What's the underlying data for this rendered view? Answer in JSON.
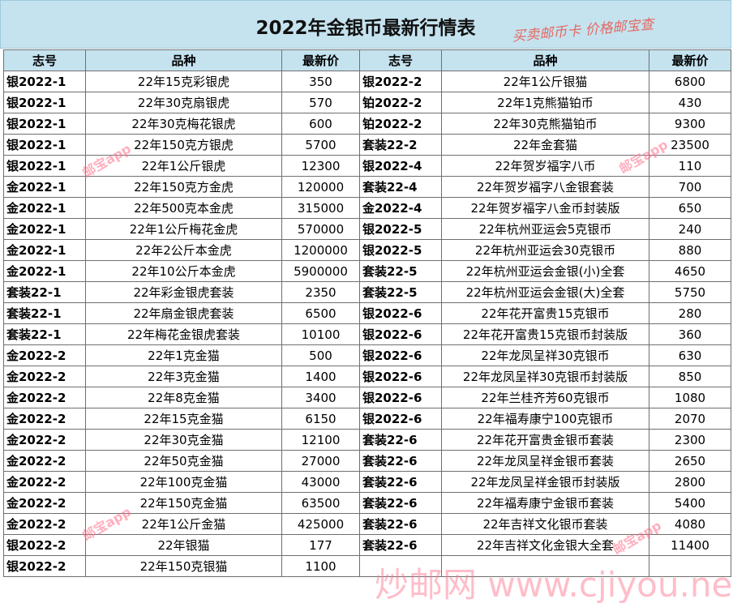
{
  "title": "2022年金银币最新行情表",
  "stamp": "买卖邮币卡 价格邮宝查",
  "headers": [
    "志号",
    "品种",
    "最新价",
    "志号",
    "品种",
    "最新价"
  ],
  "rows": [
    {
      "left": {
        "code": "银2022-1",
        "name": "22年15克彩银虎",
        "price": "350"
      },
      "right": {
        "code": "银2022-2",
        "name": "22年1公斤银猫",
        "price": "6800"
      }
    },
    {
      "left": {
        "code": "银2022-1",
        "name": "22年30克扇银虎",
        "price": "570"
      },
      "right": {
        "code": "铂2022-2",
        "name": "22年1克熊猫铂币",
        "price": "430"
      }
    },
    {
      "left": {
        "code": "银2022-1",
        "name": "22年30克梅花银虎",
        "price": "600"
      },
      "right": {
        "code": "铂2022-2",
        "name": "22年30克熊猫铂币",
        "price": "9300"
      }
    },
    {
      "left": {
        "code": "银2022-1",
        "name": "22年150克方银虎",
        "price": "5700"
      },
      "right": {
        "code": "套装22-2",
        "name": "22年金套猫",
        "price": "23500"
      }
    },
    {
      "left": {
        "code": "银2022-1",
        "name": "22年1公斤银虎",
        "price": "12300"
      },
      "right": {
        "code": "银2022-4",
        "name": "22年贺岁福字八币",
        "price": "110"
      }
    },
    {
      "left": {
        "code": "金2022-1",
        "name": "22年150克方金虎",
        "price": "120000"
      },
      "right": {
        "code": "套装22-4",
        "name": "22年贺岁福字八金银套装",
        "price": "700"
      }
    },
    {
      "left": {
        "code": "金2022-1",
        "name": "22年500克本金虎",
        "price": "315000"
      },
      "right": {
        "code": "金2022-4",
        "name": "22年贺岁福字八金币封装版",
        "price": "650"
      }
    },
    {
      "left": {
        "code": "金2022-1",
        "name": "22年1公斤梅花金虎",
        "price": "570000"
      },
      "right": {
        "code": "银2022-5",
        "name": "22年杭州亚运会5克银币",
        "price": "240"
      }
    },
    {
      "left": {
        "code": "金2022-1",
        "name": "22年2公斤本金虎",
        "price": "1200000"
      },
      "right": {
        "code": "银2022-5",
        "name": "22年杭州亚运会30克银币",
        "price": "880"
      }
    },
    {
      "left": {
        "code": "金2022-1",
        "name": "22年10公斤本金虎",
        "price": "5900000"
      },
      "right": {
        "code": "套装22-5",
        "name": "22年杭州亚运会金银(小)全套",
        "price": "4650"
      }
    },
    {
      "left": {
        "code": "套装22-1",
        "name": "22年彩金银虎套装",
        "price": "2350"
      },
      "right": {
        "code": "套装22-5",
        "name": "22年杭州亚运会金银(大)全套",
        "price": "5750"
      }
    },
    {
      "left": {
        "code": "套装22-1",
        "name": "22年扇金银虎套装",
        "price": "6500"
      },
      "right": {
        "code": "银2022-6",
        "name": "22年花开富贵15克银币",
        "price": "280"
      }
    },
    {
      "left": {
        "code": "套装22-1",
        "name": "22年梅花金银虎套装",
        "price": "10100"
      },
      "right": {
        "code": "银2022-6",
        "name": "22年花开富贵15克银币封装版",
        "price": "360"
      }
    },
    {
      "left": {
        "code": "金2022-2",
        "name": "22年1克金猫",
        "price": "500"
      },
      "right": {
        "code": "银2022-6",
        "name": "22年龙凤呈祥30克银币",
        "price": "630"
      }
    },
    {
      "left": {
        "code": "金2022-2",
        "name": "22年3克金猫",
        "price": "1400"
      },
      "right": {
        "code": "银2022-6",
        "name": "22年龙凤呈祥30克银币封装版",
        "price": "850"
      }
    },
    {
      "left": {
        "code": "金2022-2",
        "name": "22年8克金猫",
        "price": "3400"
      },
      "right": {
        "code": "银2022-6",
        "name": "22年兰桂齐芳60克银币",
        "price": "1080"
      }
    },
    {
      "left": {
        "code": "金2022-2",
        "name": "22年15克金猫",
        "price": "6150"
      },
      "right": {
        "code": "银2022-6",
        "name": "22年福寿康宁100克银币",
        "price": "2070"
      }
    },
    {
      "left": {
        "code": "金2022-2",
        "name": "22年30克金猫",
        "price": "12100"
      },
      "right": {
        "code": "套装22-6",
        "name": "22年花开富贵金银币套装",
        "price": "2300"
      }
    },
    {
      "left": {
        "code": "金2022-2",
        "name": "22年50克金猫",
        "price": "27000"
      },
      "right": {
        "code": "套装22-6",
        "name": "22年龙凤呈祥金银币套装",
        "price": "2650"
      }
    },
    {
      "left": {
        "code": "金2022-2",
        "name": "22年100克金猫",
        "price": "43000"
      },
      "right": {
        "code": "套装22-6",
        "name": "22年龙凤呈祥金银币封装版",
        "price": "2800"
      }
    },
    {
      "left": {
        "code": "金2022-2",
        "name": "22年150克金猫",
        "price": "63500"
      },
      "right": {
        "code": "套装22-6",
        "name": "22年福寿康宁金银币套装",
        "price": "5400"
      }
    },
    {
      "left": {
        "code": "金2022-2",
        "name": "22年1公斤金猫",
        "price": "425000"
      },
      "right": {
        "code": "套装22-6",
        "name": "22年吉祥文化银币套装",
        "price": "4080"
      }
    },
    {
      "left": {
        "code": "银2022-2",
        "name": "22年银猫",
        "price": "177"
      },
      "right": {
        "code": "套装22-6",
        "name": "22年吉祥文化金银大全套",
        "price": "11400"
      }
    },
    {
      "left": {
        "code": "银2022-2",
        "name": "22年150克银猫",
        "price": "1100"
      },
      "right": {
        "code": "",
        "name": "",
        "price": ""
      }
    }
  ],
  "watermarks": {
    "small": "邮宝app",
    "big": "炒邮网 www.cjiyou.net"
  }
}
